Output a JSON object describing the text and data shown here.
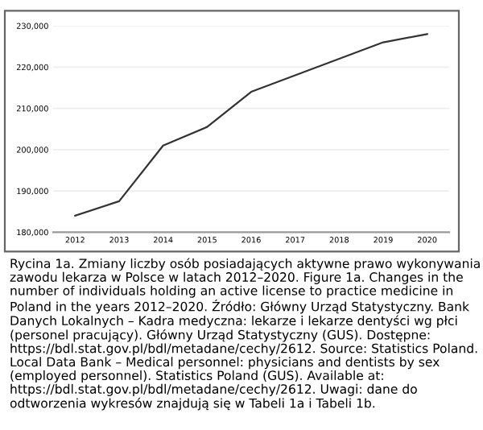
{
  "chart_data": {
    "type": "line",
    "categories": [
      "2012",
      "2013",
      "2014",
      "2015",
      "2016",
      "2017",
      "2018",
      "2019",
      "2020"
    ],
    "series": [
      {
        "color": "#333333",
        "values": [
          184000,
          187500,
          201000,
          205500,
          214000,
          218000,
          222000,
          226000,
          228000
        ]
      }
    ],
    "ylim": [
      180000,
      230000
    ],
    "yticks": [
      {
        "value": 180000,
        "label": "180,000"
      },
      {
        "value": 190000,
        "label": "190,000"
      },
      {
        "value": 200000,
        "label": "200,000"
      },
      {
        "value": 210000,
        "label": "210,000"
      },
      {
        "value": 220000,
        "label": "220,000"
      },
      {
        "value": 230000,
        "label": "230,000"
      }
    ],
    "grid": "y",
    "legend": false,
    "annotations": [
      "Rycina 1a. Zmiany liczby osób posiadających aktywne prawo wykonywania zawodu lekarza w Polsce w latach 2012–2020. Figure 1a. Changes in the number of individuals holding an active license to practice medicine in Poland in the years 2012–2020. Źródło: Główny Urząd Statystyczny. Bank Danych Lokalnych – Kadra medyczna: lekarze i lekarze dentyści wg płci (personel pracujący). Główny Urząd Statystyczny (GUS). Dostępne: https://bdl.stat.gov.pl/bdl/metadane/cechy/2612. Source: Statistics Poland. Local Data Bank – Medical personnel: physicians and dentists by sex (employed personnel). Statistics Poland (GUS). Available at: https://bdl.stat.gov.pl/bdl/metadane/cechy/2612. Uwagi: dane do odtworzenia wykresów znajdują się w Tabeli 1a i Tabeli 1b."
    ]
  }
}
